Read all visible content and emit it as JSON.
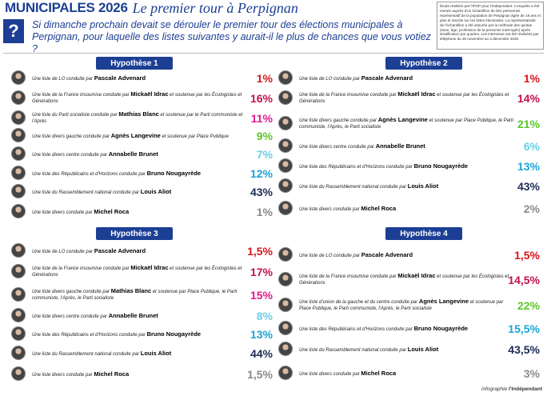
{
  "header": {
    "title_main": "MUNICIPALES 2026",
    "title_sub": "Le premier tour à Perpignan",
    "question_mark": "?",
    "question": "Si dimanche prochain devait se dérouler le premier tour des élections municipales à Perpignan, pour laquelle des listes suivantes y aurait-il le plus de chances que vous votiez ?",
    "methodology": "Étude réalisée par l'IFOP pour l'Indépendant. L'enquête a été menée auprès d'un échantillon de 601 personnes représentatif de la population de Perpignan âgée de 18 ans et plus et inscrite sur les listes électorales. La représentativité de l'échantillon a été assurée par la méthode des quotas (sexe, âge, profession de la personne interrogée) après stratification par quartier. Les interviews ont été réalisées par téléphone du 26 novembre au 3 décembre 2025."
  },
  "footer": {
    "prefix": "infographie ",
    "brand": "l'Indépendant"
  },
  "colors": {
    "brand": "#1c3f94",
    "red": "#d4161c",
    "navy": "#1c2a56"
  },
  "panels": [
    {
      "title": "Hypothèse 1",
      "rows": [
        {
          "pre": "Une liste de LO conduite par ",
          "name": "Pascale Advenard",
          "post": "",
          "pct": "1%",
          "color": "#d4161c"
        },
        {
          "pre": "Une liste de la France insoumise conduite par ",
          "name": "Mickaël Idrac",
          "post": " et soutenue par les Écologistes et Générations",
          "pct": "16%",
          "color": "#c0124a"
        },
        {
          "pre": "Une liste du Parti socialiste conduite par ",
          "name": "Mathias Blanc",
          "post": " et soutenue par le Parti communiste et l'Après",
          "pct": "11%",
          "color": "#e21a8c"
        },
        {
          "pre": "Une liste divers gauche conduite par ",
          "name": "Agnès Langevine",
          "post": " et soutenue par Place Publique",
          "pct": "9%",
          "color": "#5cc52c"
        },
        {
          "pre": "Une liste divers centre conduite par ",
          "name": "Annabelle Brunet",
          "post": "",
          "pct": "7%",
          "color": "#68cfe8"
        },
        {
          "pre": "Une liste des Républicains et d'Horizons conduite par ",
          "name": "Bruno Nougayrède",
          "post": "",
          "pct": "12%",
          "color": "#1aa4d6"
        },
        {
          "pre": "Une liste du Rassemblement national conduite par ",
          "name": "Louis Aliot",
          "post": "",
          "pct": "43%",
          "color": "#1c2a56"
        },
        {
          "pre": "Une liste divers conduite par ",
          "name": "Michel Roca",
          "post": "",
          "pct": "1%",
          "color": "#8a8a8a"
        }
      ]
    },
    {
      "title": "Hypothèse 2",
      "rows": [
        {
          "pre": "Une liste de LO conduite par ",
          "name": "Pascale Advenard",
          "post": "",
          "pct": "1%",
          "color": "#d4161c"
        },
        {
          "pre": "Une liste de la France insoumise conduite par ",
          "name": "Mickaël Idrac",
          "post": " et soutenue par les Écologistes et Générations",
          "pct": "14%",
          "color": "#c0124a"
        },
        {
          "pre": "Une liste divers gauche conduite par ",
          "name": "Agnès Langevine",
          "post": " et soutenue par Place Publique, le Parti communiste, l'Après, le Parti socialiste",
          "pct": "21%",
          "color": "#5cc52c"
        },
        {
          "pre": "Une liste divers centre conduite par ",
          "name": "Annabelle Brunet",
          "post": "",
          "pct": "6%",
          "color": "#68cfe8"
        },
        {
          "pre": "Une liste des Républicains et d'Horizons conduite par ",
          "name": "Bruno Nougayrède",
          "post": "",
          "pct": "13%",
          "color": "#1aa4d6"
        },
        {
          "pre": "Une liste du Rassemblement national conduite par ",
          "name": "Louis Aliot",
          "post": "",
          "pct": "43%",
          "color": "#1c2a56"
        },
        {
          "pre": "Une liste divers conduite par ",
          "name": "Michel Roca",
          "post": "",
          "pct": "2%",
          "color": "#8a8a8a"
        }
      ]
    },
    {
      "title": "Hypothèse 3",
      "rows": [
        {
          "pre": "Une liste de LO conduite par ",
          "name": "Pascale Advenard",
          "post": "",
          "pct": "1,5%",
          "color": "#d4161c"
        },
        {
          "pre": "Une liste de la France insoumise conduite par ",
          "name": "Mickaël Idrac",
          "post": " et soutenue par les Écologistes et Générations",
          "pct": "17%",
          "color": "#c0124a"
        },
        {
          "pre": "Une liste divers gauche conduite par ",
          "name": "Mathias Blanc",
          "post": " et soutenue par Place Publique, le Parti communiste, l'Après, le Parti socialiste",
          "pct": "15%",
          "color": "#e21a8c"
        },
        {
          "pre": "Une liste divers centre conduite par ",
          "name": "Annabelle Brunet",
          "post": "",
          "pct": "8%",
          "color": "#68cfe8"
        },
        {
          "pre": "Une liste des Républicains et d'Horizons conduite par ",
          "name": "Bruno Nougayrède",
          "post": "",
          "pct": "13%",
          "color": "#1aa4d6"
        },
        {
          "pre": "Une liste du Rassemblement national conduite par ",
          "name": "Louis Aliot",
          "post": "",
          "pct": "44%",
          "color": "#1c2a56"
        },
        {
          "pre": "Une liste divers conduite par ",
          "name": "Michel Roca",
          "post": "",
          "pct": "1,5%",
          "color": "#8a8a8a"
        }
      ]
    },
    {
      "title": "Hypothèse 4",
      "rows": [
        {
          "pre": "Une liste de LO conduite par ",
          "name": "Pascale Advenard",
          "post": "",
          "pct": "1,5%",
          "color": "#d4161c"
        },
        {
          "pre": "Une liste de la France insoumise conduite par ",
          "name": "Mickaël Idrac",
          "post": " et soutenue par les Écologistes et Générations",
          "pct": "14,5%",
          "color": "#c0124a"
        },
        {
          "pre": "Une liste d'union de la gauche et du centre conduite par ",
          "name": "Agnès Langevine",
          "post": " et soutenue par Place Publique, le Parti communiste, l'Après, le Parti socialiste",
          "pct": "22%",
          "color": "#5cc52c"
        },
        {
          "pre": "Une liste des Républicains et d'Horizons conduite par ",
          "name": "Bruno Nougayrède",
          "post": "",
          "pct": "15,5%",
          "color": "#1aa4d6"
        },
        {
          "pre": "Une liste du Rassemblement national conduite par ",
          "name": "Louis Aliot",
          "post": "",
          "pct": "43,5%",
          "color": "#1c2a56"
        },
        {
          "pre": "Une liste divers conduite par ",
          "name": "Michel Roca",
          "post": "",
          "pct": "3%",
          "color": "#8a8a8a"
        }
      ]
    }
  ]
}
